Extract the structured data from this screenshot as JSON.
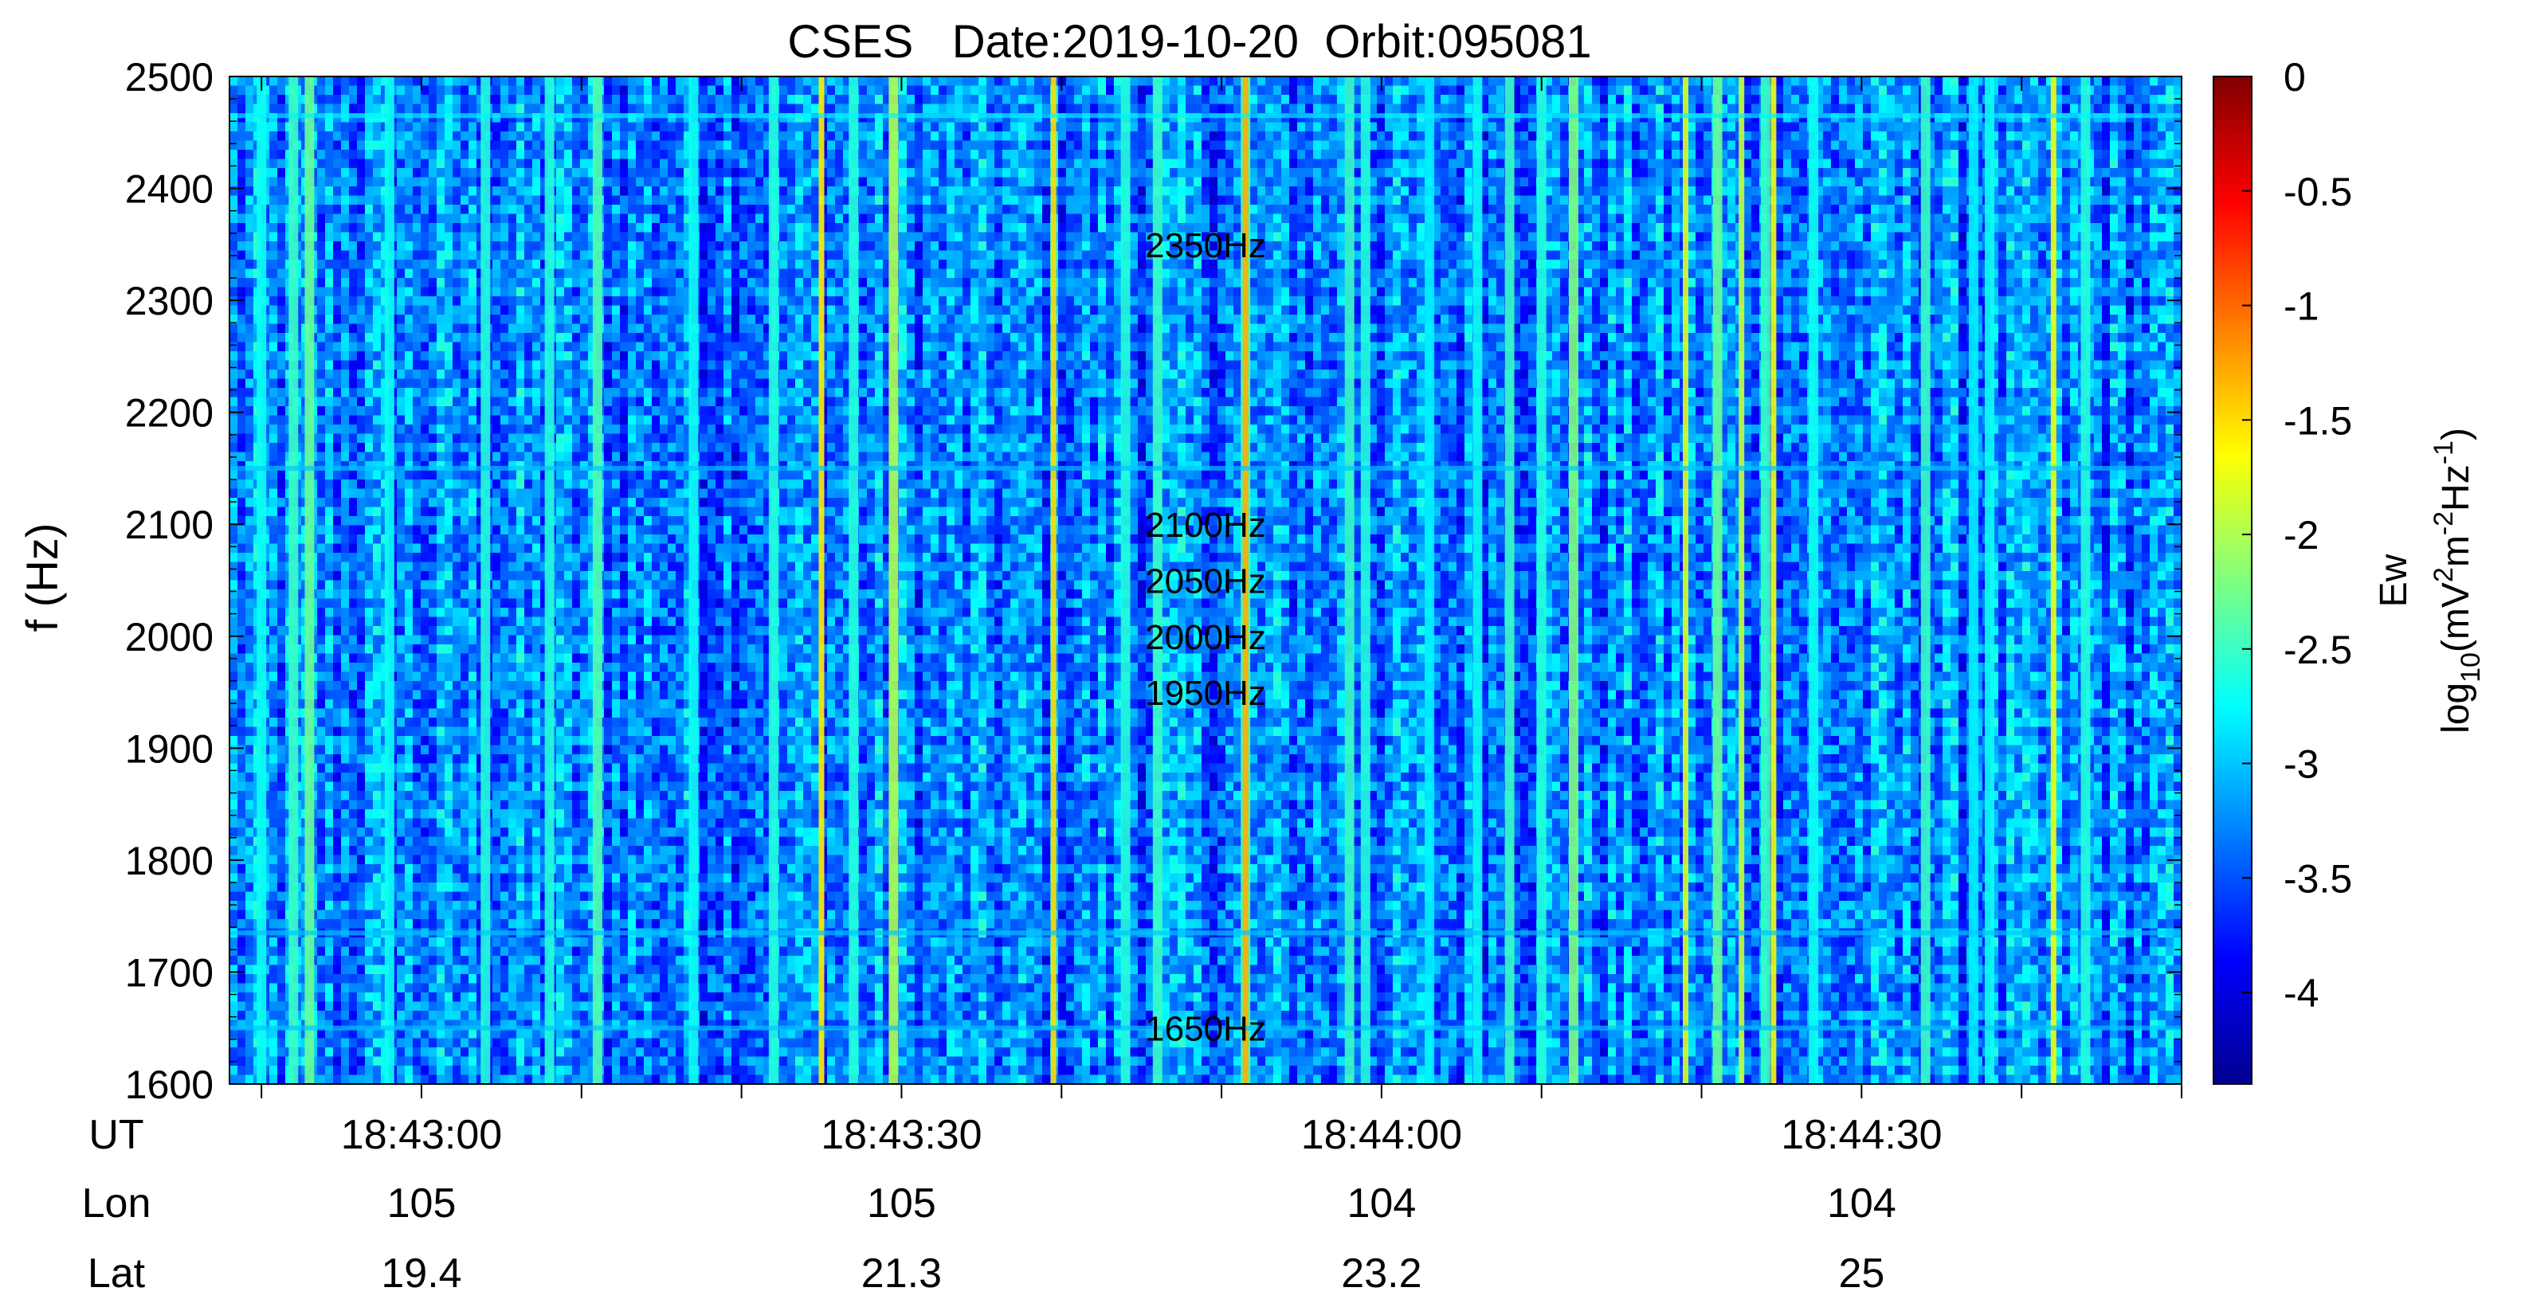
{
  "chart_data": {
    "type": "heatmap",
    "title": "CSES   Date:2019-10-20  Orbit:095081",
    "ylabel": "f (Hz)",
    "ylim": [
      1600,
      2500
    ],
    "yticks": [
      1600,
      1700,
      1800,
      1900,
      2000,
      2100,
      2200,
      2300,
      2400,
      2500
    ],
    "x_rows": [
      {
        "label": "UT",
        "values": [
          "18:43:00",
          "18:43:30",
          "18:44:00",
          "18:44:30"
        ]
      },
      {
        "label": "Lon",
        "values": [
          "105",
          "105",
          "104",
          "104"
        ]
      },
      {
        "label": "Lat",
        "values": [
          "19.4",
          "21.3",
          "23.2",
          "25"
        ]
      }
    ],
    "x_tick_seconds": [
      0,
      30,
      60,
      90
    ],
    "xlim_seconds": [
      -12,
      110
    ],
    "annotations": [
      {
        "text": "2350Hz",
        "f": 2350
      },
      {
        "text": "2100Hz",
        "f": 2100
      },
      {
        "text": "2050Hz",
        "f": 2050
      },
      {
        "text": "2000Hz",
        "f": 2000
      },
      {
        "text": "1950Hz",
        "f": 1950
      },
      {
        "text": "1650Hz",
        "f": 1650
      }
    ],
    "annotation_t_seconds": 49,
    "colorbar": {
      "label_line1": "Ew",
      "label_line2_parts": [
        "log",
        "10",
        "(mV",
        "2",
        "m",
        "-2",
        "Hz",
        "-1",
        ")"
      ],
      "range": [
        -4.4,
        0
      ],
      "ticks": [
        0,
        -0.5,
        -1,
        -1.5,
        -2,
        -2.5,
        -3,
        -3.5,
        -4
      ],
      "tick_labels": [
        "0",
        "-0.5",
        "-1",
        "-1.5",
        "-2",
        "-2.5",
        "-3",
        "-3.5",
        "-4"
      ],
      "colormap": "jet"
    },
    "background_log_power": -3.3,
    "bright_lines": [
      {
        "t": -10,
        "level": -2.7
      },
      {
        "t": -8,
        "level": -2.5
      },
      {
        "t": -7,
        "level": -2.3
      },
      {
        "t": -2,
        "level": -2.7
      },
      {
        "t": 4,
        "level": -2.6
      },
      {
        "t": 8,
        "level": -2.6
      },
      {
        "t": 11,
        "level": -2.4
      },
      {
        "t": 17,
        "level": -2.7
      },
      {
        "t": 22,
        "level": -2.6
      },
      {
        "t": 25,
        "level": -1.6
      },
      {
        "t": 27,
        "level": -2.6
      },
      {
        "t": 29.5,
        "level": -2.0
      },
      {
        "t": 39.5,
        "level": -1.5
      },
      {
        "t": 44,
        "level": -2.6
      },
      {
        "t": 46,
        "level": -2.5
      },
      {
        "t": 51.5,
        "level": -2.4
      },
      {
        "t": 51.5,
        "level": -1.3
      },
      {
        "t": 59,
        "level": -2.6
      },
      {
        "t": 63,
        "level": -2.8
      },
      {
        "t": 66,
        "level": -2.7
      },
      {
        "t": 68,
        "level": -2.5
      },
      {
        "t": 70,
        "level": -2.6
      },
      {
        "t": 79,
        "level": -1.8
      },
      {
        "t": 81,
        "level": -2.3
      },
      {
        "t": 84,
        "level": -2.5
      },
      {
        "t": 87,
        "level": -2.7
      },
      {
        "t": 94,
        "level": -2.5
      },
      {
        "t": 98,
        "level": -2.7
      },
      {
        "t": 102,
        "level": -1.7
      },
      {
        "t": 104,
        "level": -2.6
      },
      {
        "t": 58,
        "level": -2.5
      },
      {
        "t": 72,
        "level": -2.2
      },
      {
        "t": 82.5,
        "level": -1.9
      },
      {
        "t": 84.5,
        "level": -1.7
      },
      {
        "t": 97,
        "level": -2.8
      }
    ],
    "horizontal_lines": [
      {
        "f": 2465,
        "level": -2.8
      },
      {
        "f": 2150,
        "level": -3.0
      },
      {
        "f": 1650,
        "level": -3.0
      },
      {
        "f": 1735,
        "level": -3.0
      }
    ]
  }
}
